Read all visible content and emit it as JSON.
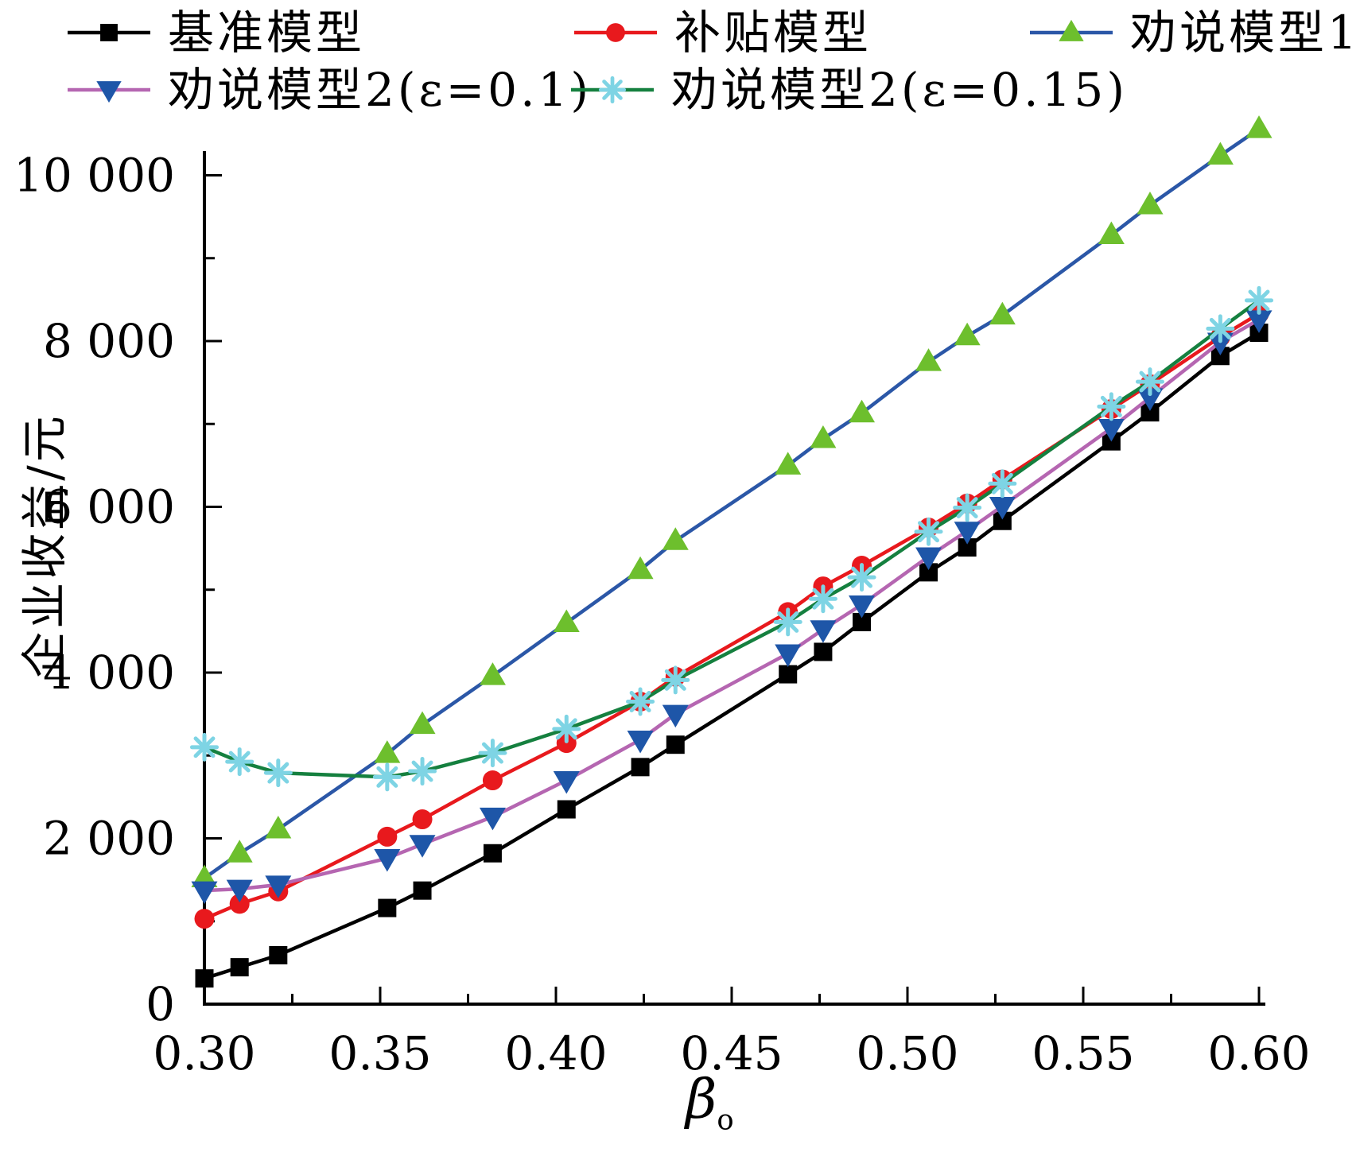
{
  "legend": {
    "items": [
      {
        "label": "基准模型",
        "series_index": 0
      },
      {
        "label": "补贴模型",
        "series_index": 1
      },
      {
        "label": "劝说模型1",
        "series_index": 2
      },
      {
        "label": "劝说模型2(ε=0.1)",
        "series_index": 3
      },
      {
        "label": "劝说模型2(ε=0.15)",
        "series_index": 4
      }
    ]
  },
  "axes": {
    "y_label": "企业收益/元",
    "x_label_base": "β",
    "x_label_sub": "o",
    "x_tick_labels": [
      "0.30",
      "0.35",
      "0.40",
      "0.45",
      "0.50",
      "0.55",
      "0.60"
    ],
    "x_tick_values": [
      0.3,
      0.35,
      0.4,
      0.45,
      0.5,
      0.55,
      0.6
    ],
    "x_minor_ticks": [
      0.325,
      0.375,
      0.425,
      0.475,
      0.525,
      0.575
    ],
    "y_tick_labels": [
      "0",
      "2 000",
      "4 000",
      "6 000",
      "8 000",
      "10 000"
    ],
    "y_tick_values": [
      0,
      2000,
      4000,
      6000,
      8000,
      10000
    ],
    "y_minor_ticks": [
      1000,
      3000,
      5000,
      7000,
      9000
    ]
  },
  "chart_data": {
    "type": "line",
    "title": "",
    "xlabel": "β_o",
    "ylabel": "企业收益/元",
    "xlim": [
      0.3,
      0.6
    ],
    "ylim": [
      0,
      10000
    ],
    "grid": false,
    "legend_position": "top",
    "x": [
      0.3,
      0.31,
      0.321,
      0.352,
      0.362,
      0.382,
      0.403,
      0.424,
      0.434,
      0.466,
      0.476,
      0.487,
      0.506,
      0.517,
      0.527,
      0.558,
      0.569,
      0.589,
      0.6
    ],
    "series": [
      {
        "name": "基准模型",
        "line_color": "#000000",
        "marker": "square",
        "marker_color": "#000000",
        "values": [
          310,
          445,
          590,
          1160,
          1370,
          1820,
          2350,
          2860,
          3130,
          3980,
          4250,
          4610,
          5210,
          5510,
          5830,
          6790,
          7140,
          7820,
          8100
        ]
      },
      {
        "name": "补贴模型",
        "line_color": "#e8191d",
        "marker": "circle",
        "marker_color": "#e8191d",
        "values": [
          1030,
          1210,
          1360,
          2020,
          2230,
          2700,
          3150,
          3650,
          3950,
          4730,
          5040,
          5290,
          5750,
          6040,
          6330,
          7180,
          7480,
          8050,
          8330
        ]
      },
      {
        "name": "劝说模型1",
        "line_color": "#2b57a7",
        "marker": "triangle-up",
        "marker_color": "#6dbf2d",
        "values": [
          1520,
          1820,
          2110,
          3020,
          3370,
          3960,
          4600,
          5240,
          5590,
          6500,
          6820,
          7130,
          7750,
          8060,
          8310,
          9280,
          9640,
          10240,
          10560
        ]
      },
      {
        "name": "劝说模型2(ε=0.1)",
        "line_color": "#b566b1",
        "marker": "triangle-down",
        "marker_color": "#1e56a8",
        "values": [
          1370,
          1390,
          1440,
          1760,
          1930,
          2260,
          2700,
          3190,
          3500,
          4230,
          4520,
          4820,
          5400,
          5710,
          6010,
          6950,
          7320,
          7990,
          8260
        ]
      },
      {
        "name": "劝说模型2(ε=0.15)",
        "line_color": "#15803f",
        "marker": "asterisk",
        "marker_color": "#7ed4e4",
        "values": [
          3100,
          2925,
          2790,
          2740,
          2810,
          3030,
          3320,
          3650,
          3910,
          4610,
          4890,
          5150,
          5700,
          5990,
          6280,
          7210,
          7510,
          8150,
          8490
        ]
      }
    ]
  }
}
